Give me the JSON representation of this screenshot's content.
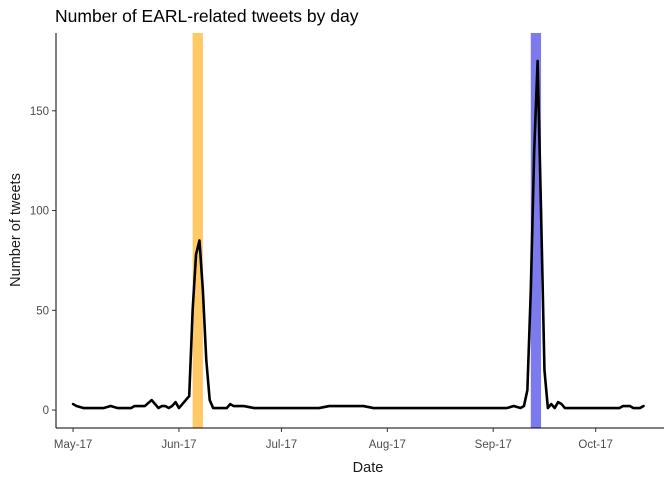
{
  "chart_data": {
    "type": "line",
    "title": "Number of EARL-related tweets by day",
    "xlabel": "Date",
    "ylabel": "Number of tweets",
    "x_domain": [
      "2017-04-26",
      "2017-10-21"
    ],
    "ylim": [
      -9,
      189
    ],
    "y_ticks": [
      0,
      50,
      100,
      150
    ],
    "x_ticks": [
      {
        "date": "2017-05-01",
        "label": "May-17"
      },
      {
        "date": "2017-06-01",
        "label": "Jun-17"
      },
      {
        "date": "2017-07-01",
        "label": "Jul-17"
      },
      {
        "date": "2017-08-01",
        "label": "Aug-17"
      },
      {
        "date": "2017-09-01",
        "label": "Sep-17"
      },
      {
        "date": "2017-10-01",
        "label": "Oct-17"
      }
    ],
    "highlights": [
      {
        "start": "2017-06-05",
        "end": "2017-06-08",
        "color": "#ffc966"
      },
      {
        "start": "2017-09-12",
        "end": "2017-09-15",
        "color": "#7b7bee"
      }
    ],
    "grid": false,
    "series": [
      {
        "color": "#000000",
        "points": [
          [
            "2017-05-01",
            3
          ],
          [
            "2017-05-02",
            2
          ],
          [
            "2017-05-04",
            1
          ],
          [
            "2017-05-06",
            1
          ],
          [
            "2017-05-08",
            1
          ],
          [
            "2017-05-10",
            1
          ],
          [
            "2017-05-12",
            2
          ],
          [
            "2017-05-14",
            1
          ],
          [
            "2017-05-16",
            1
          ],
          [
            "2017-05-18",
            1
          ],
          [
            "2017-05-19",
            2
          ],
          [
            "2017-05-20",
            2
          ],
          [
            "2017-05-22",
            2
          ],
          [
            "2017-05-24",
            5
          ],
          [
            "2017-05-26",
            1
          ],
          [
            "2017-05-27",
            2
          ],
          [
            "2017-05-28",
            2
          ],
          [
            "2017-05-29",
            1
          ],
          [
            "2017-05-30",
            2
          ],
          [
            "2017-05-31",
            4
          ],
          [
            "2017-06-01",
            1
          ],
          [
            "2017-06-02",
            3
          ],
          [
            "2017-06-03",
            5
          ],
          [
            "2017-06-04",
            7
          ],
          [
            "2017-06-05",
            50
          ],
          [
            "2017-06-06",
            78
          ],
          [
            "2017-06-07",
            85
          ],
          [
            "2017-06-08",
            60
          ],
          [
            "2017-06-09",
            25
          ],
          [
            "2017-06-10",
            5
          ],
          [
            "2017-06-11",
            1
          ],
          [
            "2017-06-13",
            1
          ],
          [
            "2017-06-15",
            1
          ],
          [
            "2017-06-16",
            3
          ],
          [
            "2017-06-17",
            2
          ],
          [
            "2017-06-20",
            2
          ],
          [
            "2017-06-23",
            1
          ],
          [
            "2017-07-01",
            1
          ],
          [
            "2017-07-12",
            1
          ],
          [
            "2017-07-15",
            2
          ],
          [
            "2017-07-25",
            2
          ],
          [
            "2017-07-28",
            1
          ],
          [
            "2017-08-15",
            1
          ],
          [
            "2017-09-01",
            1
          ],
          [
            "2017-09-05",
            1
          ],
          [
            "2017-09-07",
            2
          ],
          [
            "2017-09-09",
            1
          ],
          [
            "2017-09-10",
            2
          ],
          [
            "2017-09-11",
            10
          ],
          [
            "2017-09-12",
            60
          ],
          [
            "2017-09-13",
            130
          ],
          [
            "2017-09-14",
            175
          ],
          [
            "2017-09-15",
            100
          ],
          [
            "2017-09-16",
            20
          ],
          [
            "2017-09-17",
            1
          ],
          [
            "2017-09-18",
            3
          ],
          [
            "2017-09-19",
            1
          ],
          [
            "2017-09-20",
            4
          ],
          [
            "2017-09-21",
            3
          ],
          [
            "2017-09-22",
            1
          ],
          [
            "2017-09-24",
            1
          ],
          [
            "2017-09-30",
            1
          ],
          [
            "2017-10-05",
            1
          ],
          [
            "2017-10-08",
            1
          ],
          [
            "2017-10-09",
            2
          ],
          [
            "2017-10-11",
            2
          ],
          [
            "2017-10-12",
            1
          ],
          [
            "2017-10-14",
            1
          ],
          [
            "2017-10-15",
            2
          ]
        ]
      }
    ]
  }
}
